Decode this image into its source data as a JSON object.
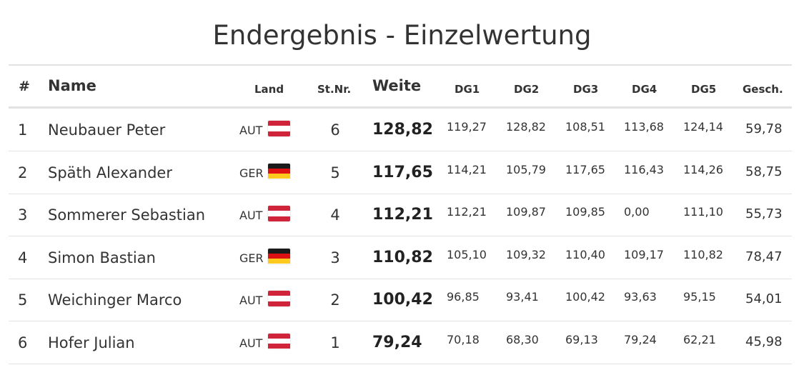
{
  "title": "Endergebnis - Einzelwertung",
  "headers": {
    "rank": "#",
    "name": "Name",
    "land": "Land",
    "stnr": "St.Nr.",
    "weite": "Weite",
    "dg1": "DG1",
    "dg2": "DG2",
    "dg3": "DG3",
    "dg4": "DG4",
    "dg5": "DG5",
    "gesch": "Gesch."
  },
  "flags": {
    "AUT": [
      "#d0243a",
      "#ffffff",
      "#d0243a"
    ],
    "GER": [
      "#1a1a1a",
      "#dd1111",
      "#ffc91e"
    ]
  },
  "rows": [
    {
      "rank": "1",
      "name": "Neubauer Peter",
      "country": "AUT",
      "bib": "6",
      "weite": "128,82",
      "dg1": "119,27",
      "dg2": "128,82",
      "dg3": "108,51",
      "dg4": "113,68",
      "dg5": "124,14",
      "gesch": "59,78"
    },
    {
      "rank": "2",
      "name": "Späth Alexander",
      "country": "GER",
      "bib": "5",
      "weite": "117,65",
      "dg1": "114,21",
      "dg2": "105,79",
      "dg3": "117,65",
      "dg4": "116,43",
      "dg5": "114,26",
      "gesch": "58,75"
    },
    {
      "rank": "3",
      "name": "Sommerer Sebastian",
      "country": "AUT",
      "bib": "4",
      "weite": "112,21",
      "dg1": "112,21",
      "dg2": "109,87",
      "dg3": "109,85",
      "dg4": "0,00",
      "dg5": "111,10",
      "gesch": "55,73"
    },
    {
      "rank": "4",
      "name": "Simon Bastian",
      "country": "GER",
      "bib": "3",
      "weite": "110,82",
      "dg1": "105,10",
      "dg2": "109,32",
      "dg3": "110,40",
      "dg4": "109,17",
      "dg5": "110,82",
      "gesch": "78,47"
    },
    {
      "rank": "5",
      "name": "Weichinger Marco",
      "country": "AUT",
      "bib": "2",
      "weite": "100,42",
      "dg1": "96,85",
      "dg2": "93,41",
      "dg3": "100,42",
      "dg4": "93,63",
      "dg5": "95,15",
      "gesch": "54,01"
    },
    {
      "rank": "6",
      "name": "Hofer Julian",
      "country": "AUT",
      "bib": "1",
      "weite": "79,24",
      "dg1": "70,18",
      "dg2": "68,30",
      "dg3": "69,13",
      "dg4": "79,24",
      "dg5": "62,21",
      "gesch": "45,98"
    }
  ]
}
